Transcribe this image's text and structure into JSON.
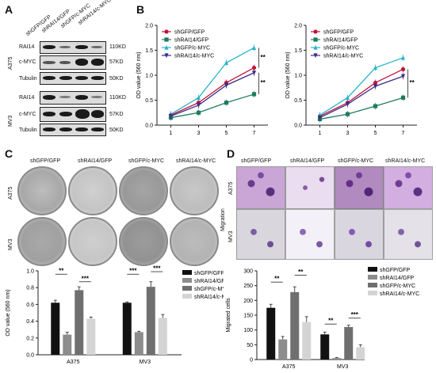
{
  "panels": {
    "A": "A",
    "B": "B",
    "C": "C",
    "D": "D"
  },
  "panelA": {
    "lanes": [
      "shGFP/GFP",
      "shRAI14/GFP",
      "shGFP/c-MYC",
      "shRAI14/c-MYC"
    ],
    "cell_lines": [
      "A375",
      "MV3"
    ],
    "rows_A375": [
      "RAI14",
      "c-MYC",
      "Tubulin"
    ],
    "rows_MV3": [
      "RAI14",
      "c-MYC",
      "Tubulin"
    ],
    "kd_A375": [
      "110KD",
      "57KD",
      "50KD"
    ],
    "kd_MV3": [
      "110KD",
      "57KD",
      "50KD"
    ]
  },
  "panelC": {
    "headers": [
      "shGFP/GFP",
      "shRAI14/GFP",
      "shGFP/c-MYC",
      "shRAI14/c-MYC"
    ],
    "rows": [
      "A375",
      "MV3"
    ]
  },
  "panelD": {
    "headers": [
      "shGFP/GFP",
      "shRAI14/GFP",
      "shGFP/c-MYC",
      "shRAI14/c-MYC"
    ],
    "rows": [
      "A375",
      "MV3"
    ],
    "side_label": "Migration"
  },
  "colors": {
    "shGFP_GFP": "#c0143c",
    "shRAI14_GFP": "#1f7a5e",
    "shGFP_cMYC": "#2ab3c9",
    "shRAI14_cMYC": "#3a2f86",
    "bar_black": "#111111",
    "bar_dark": "#8c8c8c",
    "bar_mid": "#6f6f6f",
    "bar_light": "#d4d4d4"
  },
  "chart_data": [
    {
      "type": "line",
      "panel": "B-left",
      "x": [
        1,
        3,
        5,
        7
      ],
      "ylabel": "OD value (560 nm)",
      "ylim": [
        0,
        2.0
      ],
      "yticks": [
        "0.0",
        "0.5",
        "1.0",
        "1.5",
        "2.0"
      ],
      "xticks": [
        "1",
        "3",
        "5",
        "7"
      ],
      "series": [
        {
          "name": "shGFP/GFP",
          "values": [
            0.2,
            0.45,
            0.85,
            1.15
          ]
        },
        {
          "name": "shRAI14/GFP",
          "values": [
            0.15,
            0.25,
            0.45,
            0.62
          ]
        },
        {
          "name": "shGFP/c-MYC",
          "values": [
            0.22,
            0.55,
            1.25,
            1.55
          ]
        },
        {
          "name": "shRAI14/c-MYC",
          "values": [
            0.18,
            0.4,
            0.8,
            1.05
          ]
        }
      ],
      "annotations": [
        "**",
        "**"
      ]
    },
    {
      "type": "line",
      "panel": "B-right",
      "x": [
        1,
        3,
        5,
        7
      ],
      "ylabel": "OD value (560 nm)",
      "ylim": [
        0,
        2.0
      ],
      "yticks": [
        "0.0",
        "0.5",
        "1.0",
        "1.5",
        "2.0"
      ],
      "xticks": [
        "1",
        "3",
        "5",
        "7"
      ],
      "series": [
        {
          "name": "shGFP/GFP",
          "values": [
            0.18,
            0.45,
            0.85,
            1.12
          ]
        },
        {
          "name": "shRAI14/GFP",
          "values": [
            0.12,
            0.22,
            0.38,
            0.55
          ]
        },
        {
          "name": "shGFP/c-MYC",
          "values": [
            0.2,
            0.55,
            1.15,
            1.35
          ]
        },
        {
          "name": "shRAI14/c-MYC",
          "values": [
            0.15,
            0.42,
            0.78,
            0.98
          ]
        }
      ],
      "annotations": [
        "**"
      ]
    },
    {
      "type": "bar",
      "panel": "C-bar",
      "categories": [
        "A375",
        "MV3"
      ],
      "ylabel": "OD value (560 nm)",
      "ylim": [
        0,
        1.0
      ],
      "yticks": [
        "0.0",
        "0.2",
        "0.4",
        "0.6",
        "0.8",
        "1.0"
      ],
      "series": [
        {
          "name": "shGFP/GFP",
          "values": [
            0.62,
            0.62
          ],
          "err": [
            0.03,
            0.01
          ]
        },
        {
          "name": "shRAI14/GFP",
          "values": [
            0.24,
            0.27
          ],
          "err": [
            0.03,
            0.01
          ]
        },
        {
          "name": "shGFP/c-MYC",
          "values": [
            0.77,
            0.81
          ],
          "err": [
            0.04,
            0.06
          ]
        },
        {
          "name": "shRAI14/c-MYC",
          "values": [
            0.43,
            0.44
          ],
          "err": [
            0.02,
            0.04
          ]
        }
      ],
      "annotations": [
        "**",
        "***",
        "***",
        "***"
      ]
    },
    {
      "type": "bar",
      "panel": "D-bar",
      "categories": [
        "A375",
        "MV3"
      ],
      "ylabel": "Migrated cells",
      "ylim": [
        0,
        300
      ],
      "yticks": [
        "0",
        "50",
        "100",
        "150",
        "200",
        "250",
        "300"
      ],
      "series": [
        {
          "name": "shGFP/GFP",
          "values": [
            175,
            85
          ],
          "err": [
            12,
            8
          ]
        },
        {
          "name": "shRAI14/GFP",
          "values": [
            68,
            5
          ],
          "err": [
            10,
            2
          ]
        },
        {
          "name": "shGFP/c-MYC",
          "values": [
            228,
            110
          ],
          "err": [
            18,
            6
          ]
        },
        {
          "name": "shRAI14/c-MYC",
          "values": [
            127,
            42
          ],
          "err": [
            18,
            8
          ]
        }
      ],
      "annotations": [
        "**",
        "**",
        "**",
        "***"
      ]
    }
  ]
}
